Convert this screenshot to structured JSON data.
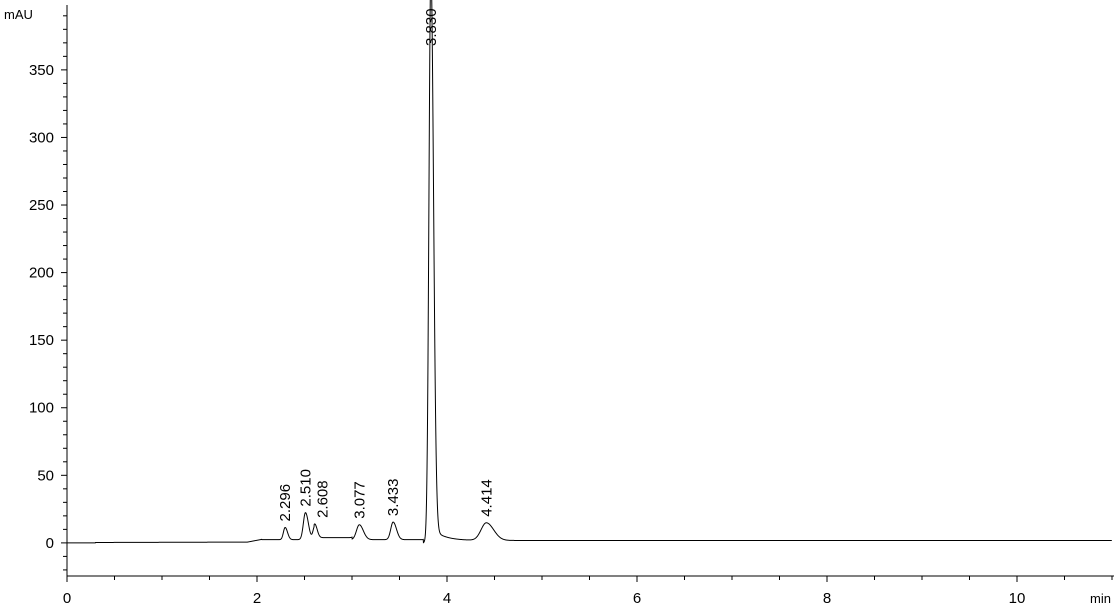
{
  "chart_data": {
    "type": "line",
    "title": "",
    "xlabel": "min",
    "ylabel": "mAU",
    "xlim": [
      0,
      11.0
    ],
    "ylim": [
      -24.5,
      398
    ],
    "x_ticks": [
      0,
      2,
      4,
      6,
      8,
      10
    ],
    "x_tick_labels": [
      "0",
      "2",
      "4",
      "6",
      "8",
      "10"
    ],
    "x_minor_step": 0.5,
    "y_ticks": [
      0,
      50,
      100,
      150,
      200,
      250,
      300,
      350
    ],
    "y_tick_labels": [
      "0",
      "50",
      "100",
      "150",
      "200",
      "250",
      "300",
      "350"
    ],
    "y_minor_step": 10,
    "grid": false,
    "line_color": "#000000",
    "peaks": [
      {
        "label": "2.296",
        "rt": 2.296,
        "height": 9
      },
      {
        "label": "2.510",
        "rt": 2.51,
        "height": 20
      },
      {
        "label": "2.608",
        "rt": 2.608,
        "height": 10
      },
      {
        "label": "3.077",
        "rt": 3.077,
        "height": 11
      },
      {
        "label": "3.433",
        "rt": 3.433,
        "height": 13
      },
      {
        "label": "3.830",
        "rt": 3.83,
        "height": 420
      },
      {
        "label": "4.414",
        "rt": 4.414,
        "height": 13
      }
    ]
  }
}
